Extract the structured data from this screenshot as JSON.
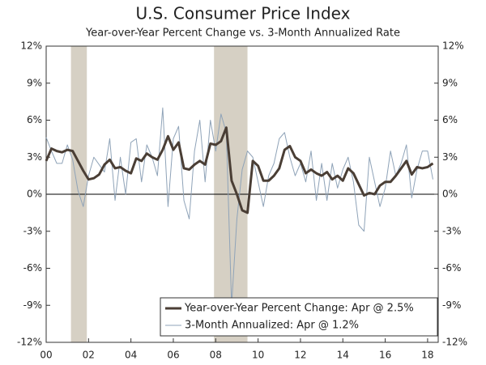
{
  "chart_data": {
    "type": "line",
    "title": "U.S. Consumer Price Index",
    "subtitle": "Year-over-Year Percent Change vs. 3-Month Annualized Rate",
    "x": [
      2000,
      2000.25,
      2000.5,
      2000.75,
      2001,
      2001.25,
      2001.5,
      2001.75,
      2002,
      2002.25,
      2002.5,
      2002.75,
      2003,
      2003.25,
      2003.5,
      2003.75,
      2004,
      2004.25,
      2004.5,
      2004.75,
      2005,
      2005.25,
      2005.5,
      2005.75,
      2006,
      2006.25,
      2006.5,
      2006.75,
      2007,
      2007.25,
      2007.5,
      2007.75,
      2008,
      2008.25,
      2008.5,
      2008.75,
      2009,
      2009.25,
      2009.5,
      2009.75,
      2010,
      2010.25,
      2010.5,
      2010.75,
      2011,
      2011.25,
      2011.5,
      2011.75,
      2012,
      2012.25,
      2012.5,
      2012.75,
      2013,
      2013.25,
      2013.5,
      2013.75,
      2014,
      2014.25,
      2014.5,
      2014.75,
      2015,
      2015.25,
      2015.5,
      2015.75,
      2016,
      2016.25,
      2016.5,
      2016.75,
      2017,
      2017.25,
      2017.5,
      2017.75,
      2018,
      2018.25
    ],
    "series": [
      {
        "name": "3-Month Annualized: Apr @ 1.2%",
        "color": "#8fa3b8",
        "width": 1,
        "values": [
          4.6,
          3.5,
          2.5,
          2.5,
          4.0,
          2.8,
          0.3,
          -1.0,
          1.5,
          3.0,
          2.4,
          1.8,
          4.5,
          -0.5,
          3.0,
          0.0,
          4.2,
          4.5,
          1.0,
          4.0,
          3.0,
          1.5,
          7.0,
          -1.0,
          4.5,
          5.5,
          -0.5,
          -2.0,
          3.5,
          6.0,
          1.0,
          6.0,
          3.5,
          6.5,
          5.0,
          -9.0,
          -2.0,
          2.0,
          3.5,
          3.0,
          1.0,
          -1.0,
          1.5,
          2.5,
          4.5,
          5.0,
          3.0,
          1.5,
          2.5,
          1.0,
          3.5,
          -0.5,
          2.5,
          -0.5,
          2.5,
          0.5,
          2.0,
          3.0,
          1.0,
          -2.5,
          -3.0,
          3.0,
          1.0,
          -1.0,
          0.5,
          3.5,
          1.5,
          2.5,
          4.0,
          -0.3,
          2.0,
          3.5,
          3.5,
          1.2
        ]
      },
      {
        "name": "Year-over-Year Percent Change: Apr @ 2.5%",
        "color": "#4a3e35",
        "width": 3,
        "values": [
          2.7,
          3.7,
          3.5,
          3.4,
          3.6,
          3.5,
          2.7,
          1.9,
          1.2,
          1.3,
          1.6,
          2.4,
          2.8,
          2.1,
          2.2,
          1.9,
          1.7,
          2.9,
          2.7,
          3.3,
          3.0,
          2.8,
          3.6,
          4.7,
          3.6,
          4.2,
          2.1,
          2.0,
          2.4,
          2.7,
          2.4,
          4.1,
          4.0,
          4.3,
          5.4,
          1.1,
          0.0,
          -1.3,
          -1.5,
          2.7,
          2.3,
          1.1,
          1.1,
          1.5,
          2.1,
          3.6,
          3.9,
          3.0,
          2.7,
          1.7,
          2.0,
          1.7,
          1.5,
          1.8,
          1.2,
          1.5,
          1.1,
          2.1,
          1.7,
          0.8,
          -0.1,
          0.1,
          0.0,
          0.7,
          1.0,
          1.0,
          1.5,
          2.1,
          2.7,
          1.6,
          2.2,
          2.1,
          2.2,
          2.5
        ]
      }
    ],
    "recessions": [
      [
        2001.17,
        2001.92
      ],
      [
        2007.92,
        2009.5
      ]
    ],
    "recession_color": "#d6d0c4",
    "xlim": [
      2000,
      2018.5
    ],
    "xticks": [
      {
        "value": 2000,
        "label": "00"
      },
      {
        "value": 2002,
        "label": "02"
      },
      {
        "value": 2004,
        "label": "04"
      },
      {
        "value": 2006,
        "label": "06"
      },
      {
        "value": 2008,
        "label": "08"
      },
      {
        "value": 2010,
        "label": "10"
      },
      {
        "value": 2012,
        "label": "12"
      },
      {
        "value": 2014,
        "label": "14"
      },
      {
        "value": 2016,
        "label": "16"
      },
      {
        "value": 2018,
        "label": "18"
      }
    ],
    "ylim": [
      -12,
      12
    ],
    "yticks": [
      {
        "value": -12,
        "label": "-12%"
      },
      {
        "value": -9,
        "label": "-9%"
      },
      {
        "value": -6,
        "label": "-6%"
      },
      {
        "value": -3,
        "label": "-3%"
      },
      {
        "value": 0,
        "label": "0%"
      },
      {
        "value": 3,
        "label": "3%"
      },
      {
        "value": 6,
        "label": "6%"
      },
      {
        "value": 9,
        "label": "9%"
      },
      {
        "value": 12,
        "label": "12%"
      }
    ],
    "y2lim": [
      -12,
      12
    ],
    "y2ticks": [
      {
        "value": -12,
        "label": "-12%"
      },
      {
        "value": -9,
        "label": "-9%"
      },
      {
        "value": -6,
        "label": "-6%"
      },
      {
        "value": -3,
        "label": "-3%"
      },
      {
        "value": 0,
        "label": "0%"
      },
      {
        "value": 3,
        "label": "3%"
      },
      {
        "value": 6,
        "label": "6%"
      },
      {
        "value": 9,
        "label": "9%"
      },
      {
        "value": 12,
        "label": "12%"
      }
    ],
    "legend": "lower right"
  }
}
